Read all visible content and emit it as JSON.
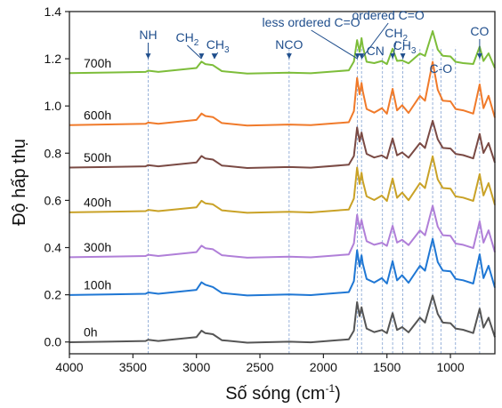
{
  "chart_data": {
    "type": "line",
    "title": "",
    "xlabel": "Số sóng (cm",
    "xlabel_sup": "-1",
    "xlabel_end": ")",
    "ylabel": "Độ hấp thụ",
    "xlim": [
      4000,
      650
    ],
    "ylim": [
      -0.05,
      1.4
    ],
    "x_reversed": true,
    "grid": false,
    "x_ticks": [
      4000,
      3500,
      3000,
      2500,
      2000,
      1500,
      1000
    ],
    "y_ticks": [
      0.0,
      0.2,
      0.4,
      0.6,
      0.8,
      1.0,
      1.2,
      1.4
    ],
    "x_tick_labels": [
      "4000",
      "3500",
      "3000",
      "2500",
      "2000",
      "1500",
      "1000"
    ],
    "y_tick_labels": [
      "0.0",
      "0.2",
      "0.4",
      "0.6",
      "0.8",
      "1.0",
      "1.2",
      "1.4"
    ],
    "reference_lines_x": [
      3380,
      2270,
      1732,
      1700,
      1535,
      1455,
      1375,
      1240,
      1140,
      1075,
      960,
      770
    ],
    "x": [
      4000,
      3600,
      3400,
      3380,
      3300,
      3000,
      2960,
      2930,
      2870,
      2800,
      2600,
      2270,
      2100,
      1800,
      1760,
      1735,
      1715,
      1700,
      1690,
      1660,
      1600,
      1540,
      1500,
      1455,
      1420,
      1380,
      1330,
      1240,
      1200,
      1140,
      1100,
      1060,
      1000,
      960,
      900,
      820,
      770,
      740,
      700,
      650
    ],
    "series": [
      {
        "name": "0h",
        "color": "#555555",
        "baseline": 0.0,
        "values": [
          0.0,
          0.0,
          0.005,
          0.01,
          0.005,
          0.02,
          0.045,
          0.04,
          0.03,
          0.005,
          0.0,
          0.0,
          0.0,
          0.01,
          0.05,
          0.17,
          0.11,
          0.15,
          0.12,
          0.06,
          0.04,
          0.05,
          0.04,
          0.12,
          0.05,
          0.06,
          0.04,
          0.1,
          0.08,
          0.2,
          0.12,
          0.08,
          0.08,
          0.06,
          0.05,
          0.04,
          0.14,
          0.06,
          0.1,
          0.02
        ]
      },
      {
        "name": "100h",
        "color": "#1f77d4",
        "baseline": 0.2,
        "values": [
          0.0,
          0.0,
          0.005,
          0.01,
          0.005,
          0.02,
          0.05,
          0.045,
          0.03,
          0.005,
          0.0,
          0.0,
          0.0,
          0.01,
          0.06,
          0.19,
          0.12,
          0.17,
          0.13,
          0.07,
          0.05,
          0.07,
          0.05,
          0.14,
          0.06,
          0.08,
          0.05,
          0.12,
          0.1,
          0.24,
          0.14,
          0.1,
          0.1,
          0.07,
          0.06,
          0.05,
          0.17,
          0.07,
          0.12,
          0.03
        ]
      },
      {
        "name": "300h",
        "color": "#b07fd8",
        "baseline": 0.36,
        "values": [
          0.0,
          0.0,
          0.005,
          0.01,
          0.005,
          0.02,
          0.045,
          0.04,
          0.03,
          0.005,
          0.0,
          0.0,
          0.0,
          0.01,
          0.06,
          0.18,
          0.12,
          0.16,
          0.13,
          0.07,
          0.05,
          0.06,
          0.05,
          0.13,
          0.06,
          0.07,
          0.05,
          0.11,
          0.09,
          0.22,
          0.13,
          0.09,
          0.09,
          0.06,
          0.05,
          0.04,
          0.15,
          0.06,
          0.11,
          0.02
        ]
      },
      {
        "name": "400h",
        "color": "#c9a227",
        "baseline": 0.55,
        "values": [
          0.0,
          0.0,
          0.005,
          0.01,
          0.005,
          0.02,
          0.045,
          0.04,
          0.03,
          0.005,
          0.0,
          0.0,
          0.0,
          0.01,
          0.06,
          0.19,
          0.12,
          0.17,
          0.13,
          0.07,
          0.05,
          0.07,
          0.05,
          0.14,
          0.06,
          0.08,
          0.05,
          0.12,
          0.1,
          0.24,
          0.14,
          0.1,
          0.1,
          0.07,
          0.06,
          0.05,
          0.16,
          0.07,
          0.12,
          0.03
        ]
      },
      {
        "name": "500h",
        "color": "#7a4a44",
        "baseline": 0.74,
        "values": [
          0.0,
          0.0,
          0.005,
          0.01,
          0.005,
          0.02,
          0.045,
          0.04,
          0.03,
          0.005,
          0.0,
          0.0,
          0.0,
          0.01,
          0.05,
          0.17,
          0.11,
          0.15,
          0.12,
          0.06,
          0.04,
          0.05,
          0.04,
          0.12,
          0.05,
          0.06,
          0.04,
          0.1,
          0.08,
          0.2,
          0.12,
          0.08,
          0.08,
          0.06,
          0.05,
          0.04,
          0.14,
          0.06,
          0.1,
          0.02
        ]
      },
      {
        "name": "600h",
        "color": "#f07a2a",
        "baseline": 0.92,
        "values": [
          0.0,
          0.0,
          0.005,
          0.01,
          0.005,
          0.02,
          0.045,
          0.04,
          0.03,
          0.005,
          0.0,
          0.0,
          0.0,
          0.01,
          0.06,
          0.2,
          0.13,
          0.18,
          0.14,
          0.07,
          0.05,
          0.07,
          0.05,
          0.15,
          0.06,
          0.08,
          0.05,
          0.12,
          0.1,
          0.27,
          0.15,
          0.1,
          0.1,
          0.07,
          0.06,
          0.05,
          0.17,
          0.07,
          0.12,
          0.03
        ]
      },
      {
        "name": "700h",
        "color": "#7dbd3a",
        "baseline": 1.14,
        "values": [
          0.0,
          0.0,
          0.005,
          0.01,
          0.005,
          0.02,
          0.045,
          0.04,
          0.03,
          0.005,
          0.0,
          0.0,
          0.0,
          0.01,
          0.05,
          0.14,
          0.09,
          0.15,
          0.11,
          0.05,
          0.04,
          0.05,
          0.04,
          0.1,
          0.05,
          0.05,
          0.04,
          0.08,
          0.07,
          0.18,
          0.1,
          0.07,
          0.07,
          0.05,
          0.04,
          0.04,
          0.11,
          0.05,
          0.08,
          0.02
        ]
      }
    ],
    "annotations": [
      {
        "text": "NH",
        "x": 3380
      },
      {
        "text": "CH",
        "sub": "2",
        "x": 2960
      },
      {
        "text": "CH",
        "sub": "3",
        "x": 2860
      },
      {
        "text": "NCO",
        "x": 2270
      },
      {
        "text": "less ordered C=O",
        "x": 1732
      },
      {
        "text": "ordered C=O",
        "x": 1700
      },
      {
        "text": "CH",
        "sub": "2",
        "x": 1455
      },
      {
        "text": "CN",
        "x": 1535
      },
      {
        "text": "CH",
        "sub": "3",
        "x": 1375
      },
      {
        "text": "C-O",
        "x": 1075
      },
      {
        "text": "CO",
        "x": 770
      }
    ]
  }
}
